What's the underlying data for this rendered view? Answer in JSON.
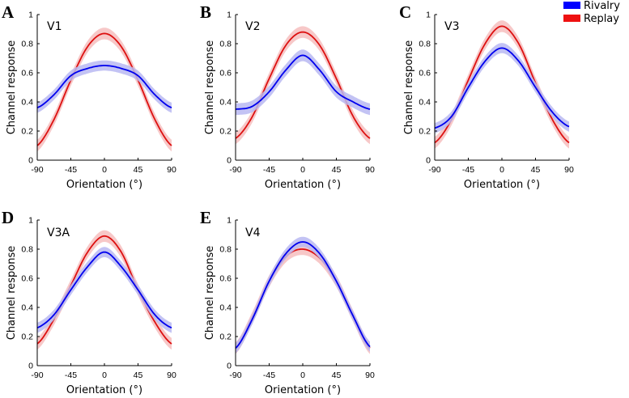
{
  "legend": {
    "items": [
      {
        "label": "Rivalry",
        "color": "#0000ff"
      },
      {
        "label": "Replay",
        "color": "#ee1111"
      }
    ]
  },
  "colors": {
    "rivalry_line": "#0000ee",
    "rivalry_band": "#b8b8f2",
    "replay_line": "#dd1111",
    "replay_band": "#f6c2c2"
  },
  "chart_data": [
    {
      "type": "line",
      "panel": "A",
      "title": "V1",
      "xlabel": "Orientation (°)",
      "ylabel": "Channel response",
      "xlim": [
        -90,
        90
      ],
      "ylim": [
        0,
        1
      ],
      "xticks": [
        "-90",
        "-45",
        "0",
        "45",
        "90"
      ],
      "yticks": [
        "0",
        "0.2",
        "0.4",
        "0.6",
        "0.8",
        "1"
      ],
      "x": [
        -90,
        -67.5,
        -45,
        -22.5,
        0,
        22.5,
        45,
        67.5,
        90
      ],
      "series": [
        {
          "name": "Rivalry",
          "values": [
            0.36,
            0.45,
            0.58,
            0.63,
            0.65,
            0.63,
            0.58,
            0.45,
            0.36
          ],
          "band": 0.035
        },
        {
          "name": "Replay",
          "values": [
            0.1,
            0.28,
            0.55,
            0.78,
            0.87,
            0.78,
            0.55,
            0.28,
            0.1
          ],
          "band": 0.04
        }
      ]
    },
    {
      "type": "line",
      "panel": "B",
      "title": "V2",
      "xlabel": "Orientation (°)",
      "ylabel": "Channel response",
      "xlim": [
        -90,
        90
      ],
      "ylim": [
        0,
        1
      ],
      "xticks": [
        "-90",
        "-45",
        "0",
        "45",
        "90"
      ],
      "yticks": [
        "0",
        "0.2",
        "0.4",
        "0.6",
        "0.8",
        "1"
      ],
      "x": [
        -90,
        -67.5,
        -45,
        -22.5,
        0,
        22.5,
        45,
        67.5,
        90
      ],
      "series": [
        {
          "name": "Rivalry",
          "values": [
            0.35,
            0.37,
            0.47,
            0.62,
            0.72,
            0.62,
            0.47,
            0.4,
            0.35
          ],
          "band": 0.04
        },
        {
          "name": "Replay",
          "values": [
            0.15,
            0.3,
            0.56,
            0.79,
            0.88,
            0.79,
            0.56,
            0.3,
            0.15
          ],
          "band": 0.04
        }
      ]
    },
    {
      "type": "line",
      "panel": "C",
      "title": "V3",
      "xlabel": "Orientation (°)",
      "ylabel": "Channel response",
      "xlim": [
        -90,
        90
      ],
      "ylim": [
        0,
        1
      ],
      "xticks": [
        "-90",
        "-45",
        "0",
        "45",
        "90"
      ],
      "yticks": [
        "0",
        "0.2",
        "0.4",
        "0.6",
        "0.8",
        "1"
      ],
      "x": [
        -90,
        -67.5,
        -45,
        -22.5,
        0,
        22.5,
        45,
        67.5,
        90
      ],
      "series": [
        {
          "name": "Rivalry",
          "values": [
            0.22,
            0.3,
            0.5,
            0.68,
            0.77,
            0.68,
            0.5,
            0.33,
            0.23
          ],
          "band": 0.035
        },
        {
          "name": "Replay",
          "values": [
            0.12,
            0.28,
            0.55,
            0.8,
            0.92,
            0.8,
            0.53,
            0.28,
            0.12
          ],
          "band": 0.04
        }
      ]
    },
    {
      "type": "line",
      "panel": "D",
      "title": "V3A",
      "xlabel": "Orientation (°)",
      "ylabel": "Channel response",
      "xlim": [
        -90,
        90
      ],
      "ylim": [
        0,
        1
      ],
      "xticks": [
        "-90",
        "-45",
        "0",
        "45",
        "90"
      ],
      "yticks": [
        "0",
        "0.2",
        "0.4",
        "0.6",
        "0.8",
        "1"
      ],
      "x": [
        -90,
        -67.5,
        -45,
        -22.5,
        0,
        22.5,
        45,
        67.5,
        90
      ],
      "series": [
        {
          "name": "Rivalry",
          "values": [
            0.26,
            0.35,
            0.52,
            0.68,
            0.78,
            0.68,
            0.52,
            0.35,
            0.26
          ],
          "band": 0.035
        },
        {
          "name": "Replay",
          "values": [
            0.15,
            0.32,
            0.55,
            0.78,
            0.89,
            0.78,
            0.52,
            0.3,
            0.15
          ],
          "band": 0.04
        }
      ]
    },
    {
      "type": "line",
      "panel": "E",
      "title": "V4",
      "xlabel": "Orientation (°)",
      "ylabel": "Channel response",
      "xlim": [
        -90,
        90
      ],
      "ylim": [
        0,
        1
      ],
      "xticks": [
        "-90",
        "-45",
        "0",
        "45",
        "90"
      ],
      "yticks": [
        "0",
        "0.2",
        "0.4",
        "0.6",
        "0.8",
        "1"
      ],
      "x": [
        -90,
        -67.5,
        -45,
        -22.5,
        0,
        22.5,
        45,
        67.5,
        90
      ],
      "series": [
        {
          "name": "Rivalry",
          "values": [
            0.12,
            0.32,
            0.58,
            0.77,
            0.85,
            0.77,
            0.58,
            0.34,
            0.13
          ],
          "band": 0.035
        },
        {
          "name": "Replay",
          "values": [
            0.12,
            0.33,
            0.58,
            0.75,
            0.8,
            0.74,
            0.58,
            0.34,
            0.12
          ],
          "band": 0.04
        }
      ]
    }
  ]
}
